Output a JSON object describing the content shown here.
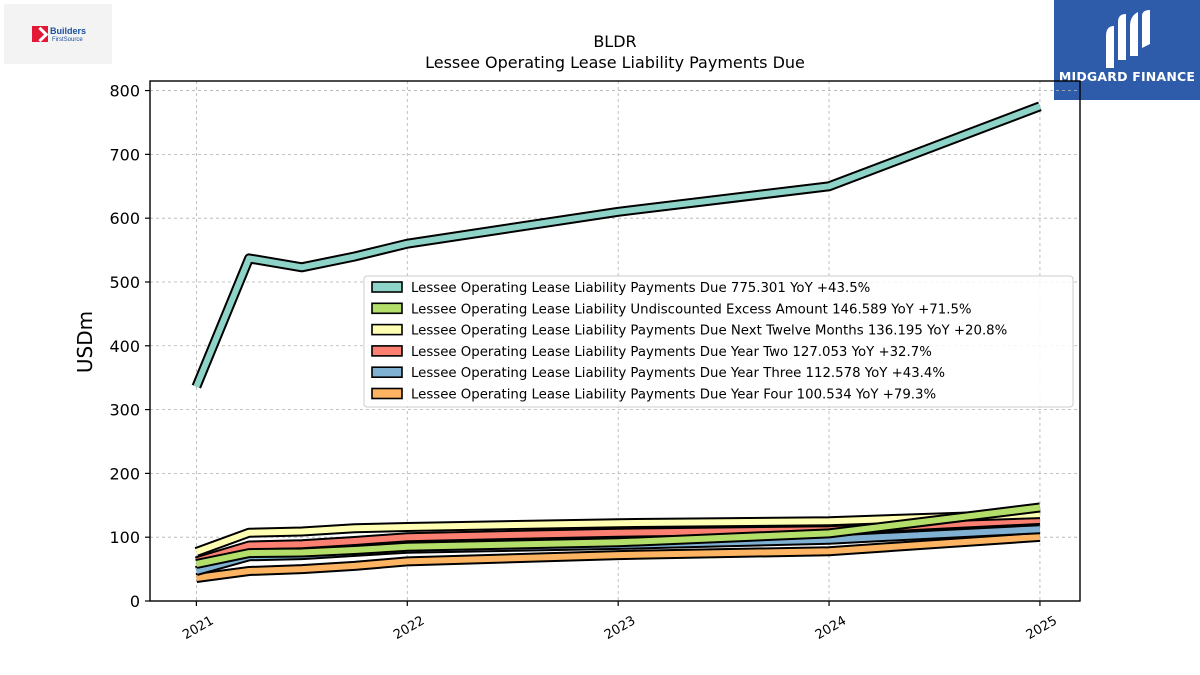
{
  "logos": {
    "left_line1": "Builders",
    "left_line2": "FirstSource",
    "right_name": "MIDGARD FINANCE"
  },
  "chart_data": {
    "type": "line",
    "title": "BLDR",
    "subtitle": "Lessee Operating Lease Liability Payments Due",
    "ylabel": "USDm",
    "xlabel": "",
    "ylim": [
      0,
      815
    ],
    "yticks": [
      0,
      100,
      200,
      300,
      400,
      500,
      600,
      700,
      800
    ],
    "xticks": [
      "2021",
      "2022",
      "2023",
      "2024",
      "2025"
    ],
    "grid": true,
    "legend_position": "center-right",
    "x": [
      2021.0,
      2021.25,
      2021.5,
      2021.75,
      2022.0,
      2023.0,
      2024.0,
      2025.0
    ],
    "series": [
      {
        "name": "Lessee Operating Lease Liability Payments Due",
        "legend": "Lessee Operating Lease Liability Payments Due  775.301 YoY +43.5%",
        "color": "#8dd3c7",
        "values": [
          336,
          537,
          523,
          540,
          560,
          610,
          650,
          775.301
        ]
      },
      {
        "name": "Lessee Operating Lease Liability Undiscounted Excess Amount",
        "legend": "Lessee Operating Lease Liability Undiscounted Excess Amount  146.589 YoY +71.5%",
        "color": "#b3de69",
        "values": [
          58,
          75,
          76,
          80,
          85,
          92,
          106,
          146.589
        ]
      },
      {
        "name": "Lessee Operating Lease Liability Payments Due Next Twelve Months",
        "legend": "Lessee Operating Lease Liability Payments Due Next Twelve Months  136.195 YoY +20.8%",
        "color": "#ffffb3",
        "values": [
          77,
          107,
          109,
          114,
          116,
          122,
          125,
          136.195
        ]
      },
      {
        "name": "Lessee Operating Lease Liability Payments Due Year Two",
        "legend": "Lessee Operating Lease Liability Payments Due Year Two  127.053 YoY +32.7%",
        "color": "#fb8072",
        "values": [
          62,
          87,
          89,
          94,
          100,
          107,
          111,
          127.053
        ]
      },
      {
        "name": "Lessee Operating Lease Liability Payments Due Year Three",
        "legend": "Lessee Operating Lease Liability Payments Due Year Three  112.578 YoY +43.4%",
        "color": "#80b1d3",
        "values": [
          47,
          70,
          72,
          77,
          82,
          88,
          96,
          112.578
        ]
      },
      {
        "name": "Lessee Operating Lease Liability Payments Due Year Four",
        "legend": "Lessee Operating Lease Liability Payments Due Year Four  100.534 YoY +79.3%",
        "color": "#fdb462",
        "values": [
          36,
          47,
          50,
          55,
          62,
          72,
          78,
          100.534
        ]
      }
    ]
  }
}
